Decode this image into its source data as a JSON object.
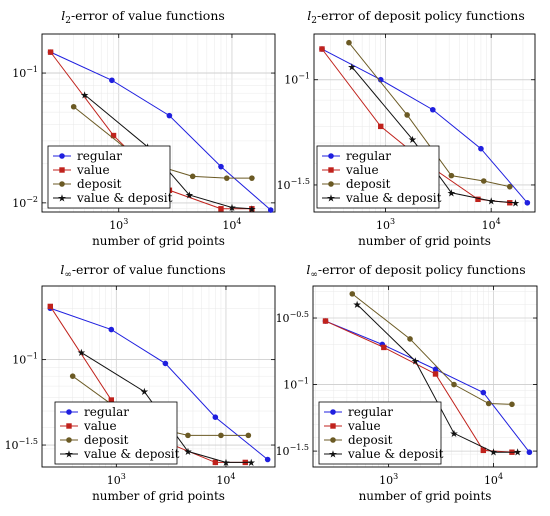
{
  "chart_data": [
    {
      "type": "line",
      "title": "l2-error of value functions",
      "title_parts": {
        "main": "l",
        "sub": "2",
        "rest": "-error of value functions"
      },
      "xlabel": "number of grid points",
      "ylabel": "",
      "xscale": "log",
      "yscale": "log",
      "xlim": [
        210,
        24000
      ],
      "ylim": [
        0.0085,
        0.2
      ],
      "xticks": [
        {
          "v": 1000,
          "b": "10",
          "e": "3"
        },
        {
          "v": 10000,
          "b": "10",
          "e": "4"
        }
      ],
      "yticks": [
        {
          "v": 0.1,
          "b": "10",
          "e": "−1"
        },
        {
          "v": 0.01,
          "b": "10",
          "e": "−2"
        }
      ],
      "grid": true,
      "legend_position": "bottom-left",
      "series": [
        {
          "name": "regular",
          "color": "#1f1fdf",
          "marker": "circle",
          "x": [
            250,
            870,
            2800,
            8000,
            22000
          ],
          "y": [
            0.145,
            0.088,
            0.047,
            0.019,
            0.0088
          ]
        },
        {
          "name": "value",
          "color": "#c0221c",
          "marker": "square",
          "x": [
            250,
            900,
            2800,
            8000,
            15000
          ],
          "y": [
            0.145,
            0.033,
            0.0125,
            0.009,
            0.009
          ]
        },
        {
          "name": "deposit",
          "color": "#6b5a24",
          "marker": "circle",
          "x": [
            400,
            1600,
            4500,
            9000,
            15000
          ],
          "y": [
            0.055,
            0.021,
            0.016,
            0.0155,
            0.0155
          ]
        },
        {
          "name": "value & deposit",
          "color": "#111111",
          "marker": "star",
          "x": [
            500,
            1800,
            4200,
            10000,
            15000
          ],
          "y": [
            0.068,
            0.027,
            0.0115,
            0.0092,
            0.009
          ]
        }
      ]
    },
    {
      "type": "line",
      "title": "l2-error of deposit policy functions",
      "title_parts": {
        "main": "l",
        "sub": "2",
        "rest": "-error of deposit policy functions"
      },
      "xlabel": "number of grid points",
      "ylabel": "",
      "xscale": "log",
      "yscale": "log",
      "xlim": [
        210,
        26000
      ],
      "ylim": [
        0.0235,
        0.165
      ],
      "xticks": [
        {
          "v": 1000,
          "b": "10",
          "e": "3"
        },
        {
          "v": 10000,
          "b": "10",
          "e": "4"
        }
      ],
      "yticks": [
        {
          "v": 0.1,
          "b": "10",
          "e": "−1"
        },
        {
          "v": 0.0316,
          "b": "10",
          "e": "−1.5"
        }
      ],
      "grid": true,
      "legend_position": "bottom-left",
      "series": [
        {
          "name": "regular",
          "color": "#1f1fdf",
          "marker": "circle",
          "x": [
            250,
            900,
            2800,
            8000,
            22000
          ],
          "y": [
            0.14,
            0.1,
            0.072,
            0.047,
            0.026
          ]
        },
        {
          "name": "value",
          "color": "#c0221c",
          "marker": "square",
          "x": [
            250,
            900,
            2600,
            7500,
            15000
          ],
          "y": [
            0.14,
            0.06,
            0.039,
            0.027,
            0.026
          ]
        },
        {
          "name": "deposit",
          "color": "#6b5a24",
          "marker": "circle",
          "x": [
            450,
            1600,
            4200,
            8500,
            15000
          ],
          "y": [
            0.15,
            0.068,
            0.035,
            0.033,
            0.031
          ]
        },
        {
          "name": "value & deposit",
          "color": "#111111",
          "marker": "star",
          "x": [
            480,
            1800,
            4200,
            10000,
            17000
          ],
          "y": [
            0.115,
            0.052,
            0.029,
            0.0265,
            0.026
          ]
        }
      ]
    },
    {
      "type": "line",
      "title": "l∞-error of value functions",
      "title_parts": {
        "main": "l",
        "sub": "∞",
        "rest": "-error of value functions"
      },
      "xlabel": "number of grid points",
      "ylabel": "",
      "xscale": "log",
      "yscale": "log",
      "xlim": [
        210,
        28000
      ],
      "ylim": [
        0.0235,
        0.27
      ],
      "xticks": [
        {
          "v": 1000,
          "b": "10",
          "e": "3"
        },
        {
          "v": 10000,
          "b": "10",
          "e": "4"
        }
      ],
      "yticks": [
        {
          "v": 0.1,
          "b": "10",
          "e": "−1"
        },
        {
          "v": 0.0316,
          "b": "10",
          "e": "−1.5"
        }
      ],
      "grid": true,
      "legend_position": "bottom-left",
      "series": [
        {
          "name": "regular",
          "color": "#1f1fdf",
          "marker": "circle",
          "x": [
            250,
            900,
            2800,
            8000,
            24000
          ],
          "y": [
            0.2,
            0.15,
            0.095,
            0.046,
            0.026
          ]
        },
        {
          "name": "value",
          "color": "#c0221c",
          "marker": "square",
          "x": [
            250,
            900,
            2800,
            8000,
            15000
          ],
          "y": [
            0.205,
            0.058,
            0.033,
            0.025,
            0.025
          ]
        },
        {
          "name": "deposit",
          "color": "#6b5a24",
          "marker": "circle",
          "x": [
            400,
            1600,
            4500,
            9000,
            16000
          ],
          "y": [
            0.08,
            0.042,
            0.036,
            0.036,
            0.036
          ]
        },
        {
          "name": "value & deposit",
          "color": "#111111",
          "marker": "star",
          "x": [
            480,
            1800,
            4500,
            10000,
            17000
          ],
          "y": [
            0.11,
            0.065,
            0.029,
            0.025,
            0.025
          ]
        }
      ]
    },
    {
      "type": "line",
      "title": "l∞-error of deposit policy functions",
      "title_parts": {
        "main": "l",
        "sub": "∞",
        "rest": "-error of deposit policy functions"
      },
      "xlabel": "number of grid points",
      "ylabel": "",
      "xscale": "log",
      "yscale": "log",
      "xlim": [
        190,
        26000
      ],
      "ylim": [
        0.024,
        0.55
      ],
      "xticks": [
        {
          "v": 1000,
          "b": "10",
          "e": "3"
        },
        {
          "v": 10000,
          "b": "10",
          "e": "4"
        }
      ],
      "yticks": [
        {
          "v": 0.316,
          "b": "10",
          "e": "−0.5"
        },
        {
          "v": 0.1,
          "b": "10",
          "e": "−1"
        },
        {
          "v": 0.0316,
          "b": "10",
          "e": "−1.5"
        }
      ],
      "grid": true,
      "legend_position": "bottom-left",
      "series": [
        {
          "name": "regular",
          "color": "#1f1fdf",
          "marker": "circle",
          "x": [
            250,
            870,
            2800,
            8000,
            22000
          ],
          "y": [
            0.3,
            0.2,
            0.13,
            0.087,
            0.031
          ]
        },
        {
          "name": "value",
          "color": "#c0221c",
          "marker": "square",
          "x": [
            250,
            900,
            2800,
            8000,
            15000
          ],
          "y": [
            0.3,
            0.19,
            0.12,
            0.032,
            0.031
          ]
        },
        {
          "name": "deposit",
          "color": "#6b5a24",
          "marker": "circle",
          "x": [
            450,
            1600,
            4200,
            9000,
            15000
          ],
          "y": [
            0.48,
            0.22,
            0.1,
            0.072,
            0.071
          ]
        },
        {
          "name": "value & deposit",
          "color": "#111111",
          "marker": "star",
          "x": [
            500,
            1800,
            4200,
            10000,
            17000
          ],
          "y": [
            0.4,
            0.15,
            0.043,
            0.031,
            0.031
          ]
        }
      ]
    }
  ]
}
